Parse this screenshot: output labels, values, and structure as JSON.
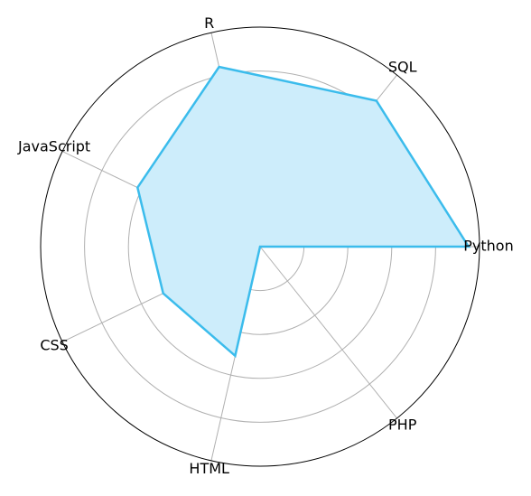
{
  "chart_data": {
    "type": "radar",
    "title": "",
    "categories": [
      "Python",
      "SQL",
      "R",
      "JavaScript",
      "CSS",
      "HTML",
      "PHP"
    ],
    "series": [
      {
        "values": [
          0.95,
          0.85,
          0.84,
          0.62,
          0.49,
          0.51,
          0.0
        ]
      }
    ],
    "rlim": [
      0,
      1
    ],
    "rgrid": [
      0.2,
      0.4,
      0.6,
      0.8
    ],
    "grid": true,
    "colors": {
      "line": "#3bbcec",
      "fill": "#cdedfb"
    }
  }
}
